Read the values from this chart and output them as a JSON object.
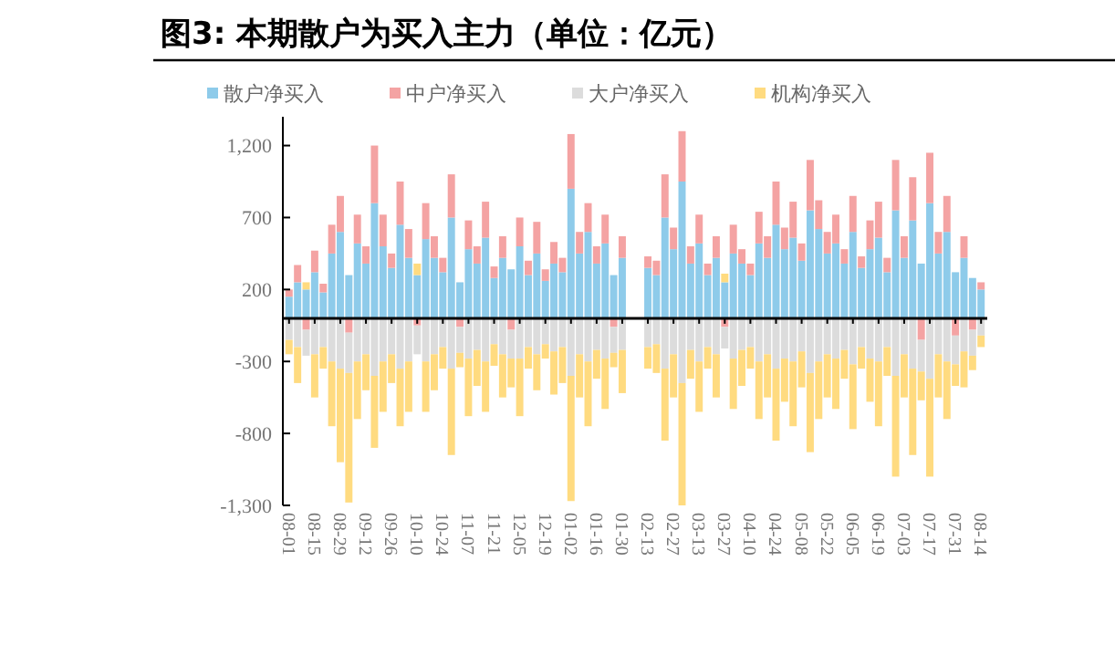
{
  "chart_data": {
    "type": "bar",
    "stacked": true,
    "title": "图3: 本期散户为买入主力（单位：亿元）",
    "categories": [
      "08-01",
      null,
      null,
      "08-15",
      null,
      null,
      "08-29",
      null,
      null,
      "09-12",
      null,
      null,
      "09-26",
      null,
      null,
      "10-10",
      null,
      null,
      "10-24",
      null,
      null,
      "11-07",
      null,
      null,
      "11-21",
      null,
      null,
      "12-05",
      null,
      null,
      "12-19",
      null,
      null,
      "01-02",
      null,
      null,
      "01-16",
      null,
      null,
      "01-30",
      null,
      null,
      "02-13",
      null,
      null,
      "02-27",
      null,
      null,
      "03-13",
      null,
      null,
      "03-27",
      null,
      null,
      "04-10",
      null,
      null,
      "04-24",
      null,
      null,
      "05-08",
      null,
      null,
      "05-22",
      null,
      null,
      "06-05",
      null,
      null,
      "06-19",
      null,
      null,
      "07-03",
      null,
      null,
      "07-17",
      null,
      null,
      "07-31",
      null,
      null,
      "08-14"
    ],
    "series": [
      {
        "name": "散户净买入",
        "color": "#8ecbea",
        "values": [
          150,
          250,
          200,
          320,
          180,
          450,
          600,
          300,
          520,
          380,
          800,
          500,
          350,
          650,
          420,
          300,
          550,
          420,
          320,
          700,
          250,
          480,
          380,
          560,
          280,
          420,
          340,
          500,
          300,
          450,
          260,
          380,
          320,
          900,
          450,
          600,
          380,
          520,
          300,
          420,
          null,
          null,
          350,
          300,
          700,
          480,
          950,
          380,
          520,
          300,
          420,
          250,
          450,
          380,
          300,
          520,
          420,
          650,
          480,
          560,
          400,
          750,
          620,
          450,
          520,
          380,
          600,
          350,
          480,
          560,
          320,
          750,
          420,
          680,
          380,
          800,
          450,
          600,
          320,
          420,
          280,
          200
        ]
      },
      {
        "name": "中户净买入",
        "color": "#f4a3a3",
        "values": [
          50,
          120,
          -80,
          150,
          60,
          200,
          250,
          -100,
          200,
          120,
          400,
          220,
          100,
          300,
          200,
          -50,
          250,
          150,
          100,
          300,
          -60,
          200,
          120,
          250,
          80,
          150,
          -80,
          200,
          100,
          220,
          80,
          150,
          100,
          380,
          150,
          200,
          120,
          200,
          -60,
          150,
          null,
          null,
          80,
          100,
          300,
          150,
          350,
          120,
          200,
          80,
          150,
          -60,
          200,
          100,
          80,
          220,
          150,
          300,
          150,
          250,
          120,
          350,
          200,
          150,
          200,
          100,
          250,
          80,
          200,
          250,
          100,
          350,
          150,
          300,
          -150,
          350,
          150,
          250,
          -120,
          150,
          -80,
          50
        ]
      },
      {
        "name": "大户净买入",
        "color": "#dcdcdc",
        "values": [
          -150,
          -200,
          -180,
          -250,
          -200,
          -300,
          -350,
          -280,
          -300,
          -250,
          -400,
          -300,
          -250,
          -350,
          -300,
          -200,
          -300,
          -250,
          -200,
          -350,
          -180,
          -280,
          -220,
          -300,
          -180,
          -250,
          -200,
          -280,
          -200,
          -250,
          -180,
          -230,
          -200,
          -400,
          -250,
          -300,
          -220,
          -280,
          -180,
          -220,
          null,
          null,
          -200,
          -180,
          -350,
          -250,
          -450,
          -220,
          -300,
          -200,
          -250,
          -150,
          -280,
          -220,
          -200,
          -300,
          -250,
          -350,
          -280,
          -300,
          -230,
          -380,
          -300,
          -250,
          -280,
          -220,
          -320,
          -200,
          -280,
          -300,
          -200,
          -400,
          -250,
          -350,
          -220,
          -420,
          -250,
          -300,
          -200,
          -230,
          -180,
          -120
        ]
      },
      {
        "name": "机构净买入",
        "color": "#ffdb80",
        "values": [
          -100,
          -250,
          50,
          -300,
          -150,
          -450,
          -650,
          -900,
          -400,
          -250,
          -500,
          -350,
          -200,
          -400,
          -350,
          80,
          -350,
          -250,
          -150,
          -600,
          -100,
          -400,
          -250,
          -350,
          -150,
          -300,
          -200,
          -400,
          -150,
          -250,
          -100,
          -300,
          -250,
          -870,
          -300,
          -450,
          -200,
          -350,
          -100,
          -300,
          null,
          null,
          -150,
          -200,
          -500,
          -300,
          -850,
          -200,
          -350,
          -150,
          -300,
          60,
          -350,
          -250,
          -150,
          -400,
          -300,
          -500,
          -300,
          -450,
          -250,
          -550,
          -400,
          -300,
          -350,
          -200,
          -450,
          -150,
          -300,
          -450,
          -200,
          -700,
          -300,
          -600,
          -200,
          -680,
          -300,
          -400,
          -150,
          -250,
          -100,
          -80
        ]
      }
    ],
    "ylim": [
      -1300,
      1400
    ],
    "yticks": [
      {
        "value": -1300,
        "label": "-1,300"
      },
      -800,
      -300,
      200,
      700,
      {
        "value": 1200,
        "label": "1,200"
      }
    ],
    "grid": false,
    "legend": "top"
  }
}
